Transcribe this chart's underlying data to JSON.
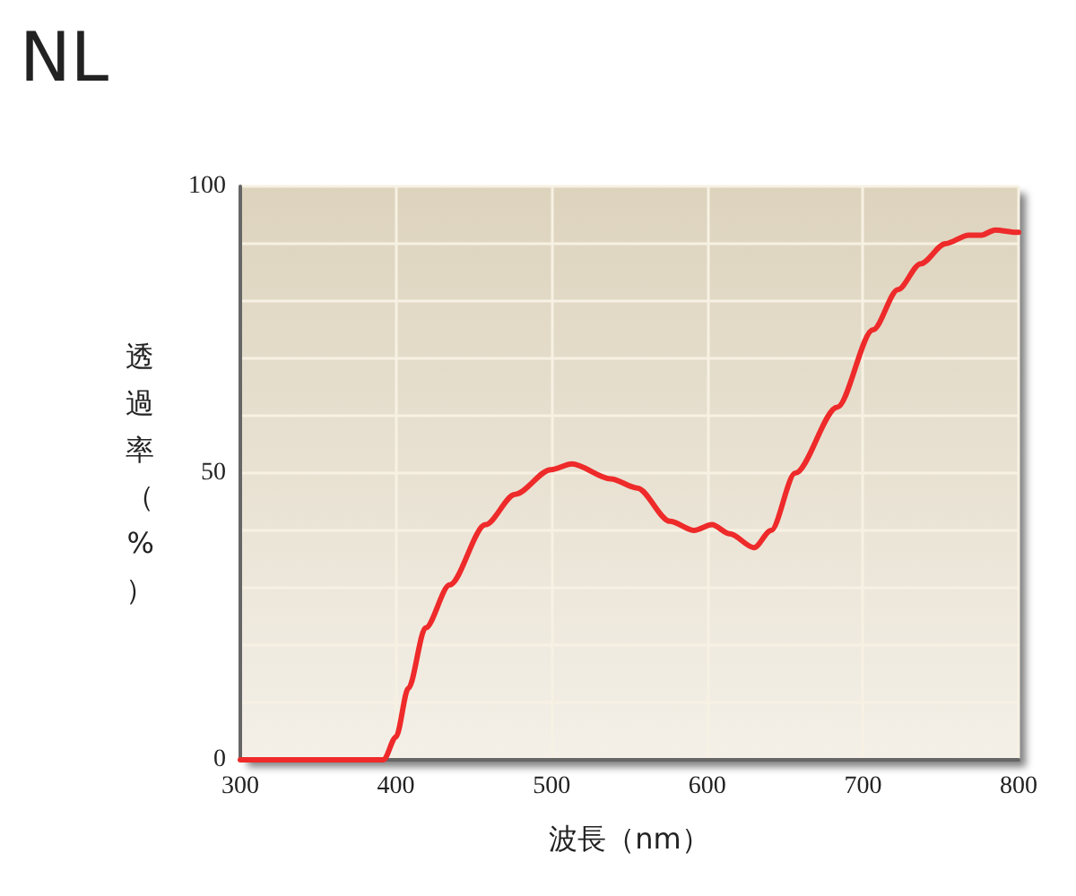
{
  "chart_data": {
    "type": "line",
    "title": "NL",
    "xlabel": "波長（nm）",
    "ylabel": "透過率（%）",
    "x": [
      300,
      350,
      392,
      400,
      408,
      419,
      434.5,
      457.5,
      476.5,
      499.5,
      513,
      538,
      555,
      576,
      591.5,
      603,
      614.5,
      630,
      641,
      656.5,
      683.5,
      706.5,
      722.5,
      737,
      753,
      768,
      776,
      785,
      798.5,
      800
    ],
    "series": [
      {
        "color": "#ee2a2a",
        "values": [
          0,
          0,
          0,
          4,
          12.5,
          23,
          30.5,
          41,
          46.3,
          50.6,
          51.6,
          49,
          47.4,
          41.6,
          40,
          41,
          39.4,
          37,
          40,
          50,
          61.5,
          75,
          82,
          86.5,
          90,
          91.5,
          91.5,
          92.4,
          92,
          92
        ]
      }
    ],
    "xlim": [
      300,
      800
    ],
    "xticks": [
      300,
      400,
      500,
      600,
      700,
      800
    ],
    "ylim": [
      0,
      100
    ],
    "yticks": [
      0,
      {
        "value": 10,
        "label": null
      },
      {
        "value": 20,
        "label": null
      },
      {
        "value": 30,
        "label": null
      },
      {
        "value": 40,
        "label": null
      },
      50,
      {
        "value": 60,
        "label": null
      },
      {
        "value": 70,
        "label": null
      },
      {
        "value": 80,
        "label": null
      },
      {
        "value": 90,
        "label": null
      },
      100
    ],
    "grid": true,
    "marker": "none",
    "line_style": "solid"
  }
}
